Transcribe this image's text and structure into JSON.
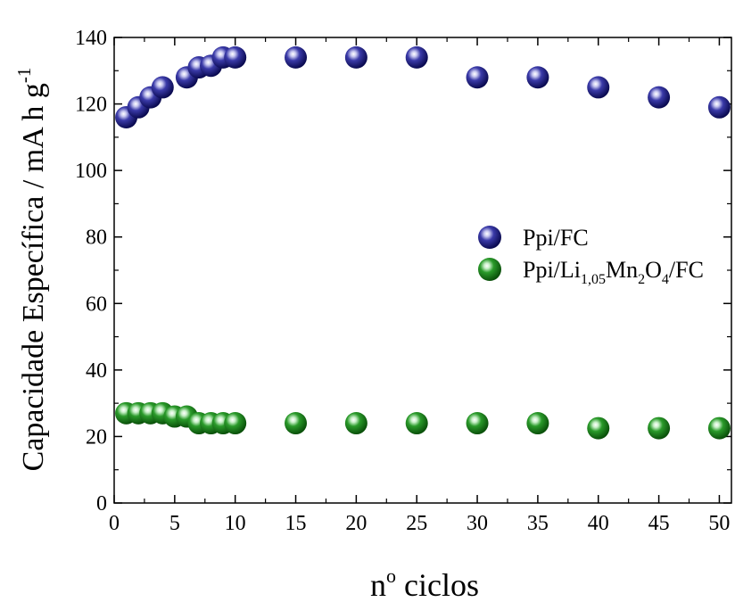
{
  "chart_data": {
    "type": "scatter",
    "xlabel": "nº ciclos",
    "ylabel": "Capacidade Específica / mA h g-1",
    "xlim": [
      0,
      51
    ],
    "ylim": [
      0,
      140
    ],
    "xticks": [
      0,
      5,
      10,
      15,
      20,
      25,
      30,
      35,
      40,
      45,
      50
    ],
    "yticks": [
      0,
      20,
      40,
      60,
      80,
      100,
      120,
      140
    ],
    "grid": false,
    "legend_position": "right-middle",
    "series": [
      {
        "name": "Ppi/FC",
        "color": "#1c1c8a",
        "x": [
          1,
          2,
          3,
          4,
          6,
          7,
          8,
          9,
          10,
          15,
          20,
          25,
          30,
          35,
          40,
          45,
          50
        ],
        "y": [
          116,
          119,
          122,
          125,
          128,
          131,
          131.5,
          134,
          134,
          134,
          134,
          134,
          128,
          128,
          125,
          122,
          119
        ]
      },
      {
        "name": "Ppi/Li1,05Mn2O4/FC",
        "color": "#1a8a1a",
        "x": [
          1,
          2,
          3,
          4,
          5,
          6,
          7,
          8,
          9,
          10,
          15,
          20,
          25,
          30,
          35,
          40,
          45,
          50
        ],
        "y": [
          27,
          27,
          27,
          27,
          26,
          26,
          24,
          24,
          24,
          24,
          24,
          24,
          24,
          24,
          24,
          22.5,
          22.5,
          22.5
        ]
      }
    ]
  },
  "labels": {
    "xlabel_main": "n",
    "xlabel_sup": "o",
    "xlabel_rest": " ciclos",
    "ylabel_main": "Capacidade Específica / mA h g",
    "ylabel_sup": "-1",
    "legend1": "Ppi/FC",
    "legend2_a": "Ppi/Li",
    "legend2_s1": "1,05",
    "legend2_b": "Mn",
    "legend2_s2": "2",
    "legend2_c": "O",
    "legend2_s3": "4",
    "legend2_d": "/FC"
  }
}
